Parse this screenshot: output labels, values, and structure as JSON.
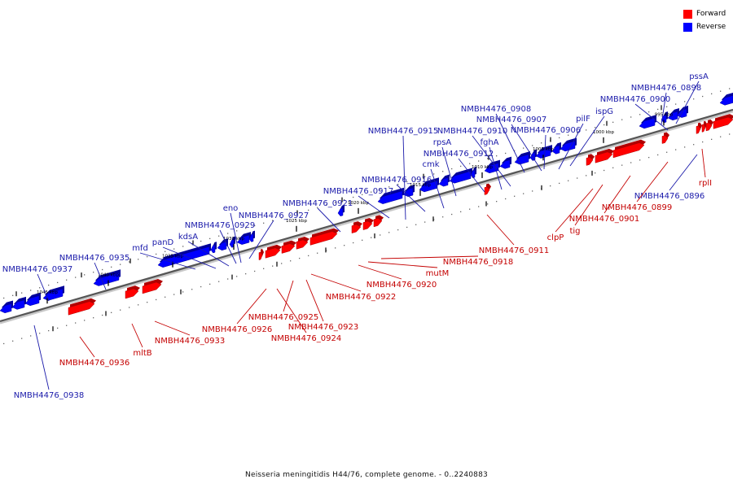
{
  "legend": {
    "items": [
      {
        "label": "Forward",
        "color": "#ff0000"
      },
      {
        "label": "Reverse",
        "color": "#0000ff"
      }
    ]
  },
  "caption": "Neisseria meningitidis H44/76, complete genome. - 0..2240883",
  "colors": {
    "forward": "#ff0000",
    "reverse": "#0000ff",
    "backbone": "#555555"
  },
  "scale_ticks": [
    "1045 kbp",
    "1040 kbp",
    "1035 kbp",
    "1030 kbp",
    "1025 kbp",
    "1020 kbp",
    "1015 kbp",
    "1010 kbp",
    "1005 kbp",
    "1000 kbp",
    "995 kbp"
  ],
  "reverse_labels": [
    "pssA",
    "NMBH4476_0898",
    "NMBH4476_0900",
    "NMBH4476_0908",
    "ispG",
    "pilF",
    "NMBH4476_0907",
    "NMBH4476_0906",
    "NMBH4476_0915",
    "NMBH4476_0910",
    "fghA",
    "rpsA",
    "NMBH4476_0912",
    "cmk",
    "NMBH4476_0916",
    "NMBH4476_0917",
    "NMBH4476_0921",
    "eno",
    "NMBH4476_0929",
    "NMBH4476_0927",
    "kdsA",
    "panD",
    "mfd",
    "NMBH4476_0935",
    "NMBH4476_0937",
    "NMBH4476_0896",
    "NMBH4476_0938"
  ],
  "forward_labels": [
    "rplI",
    "NMBH4476_0899",
    "NMBH4476_0901",
    "tig",
    "clpP",
    "NMBH4476_0911",
    "NMBH4476_0918",
    "mutM",
    "NMBH4476_0920",
    "NMBH4476_0922",
    "NMBH4476_0925",
    "NMBH4476_0923",
    "NMBH4476_0924",
    "NMBH4476_0926",
    "NMBH4476_0933",
    "mltB",
    "NMBH4476_0936"
  ]
}
